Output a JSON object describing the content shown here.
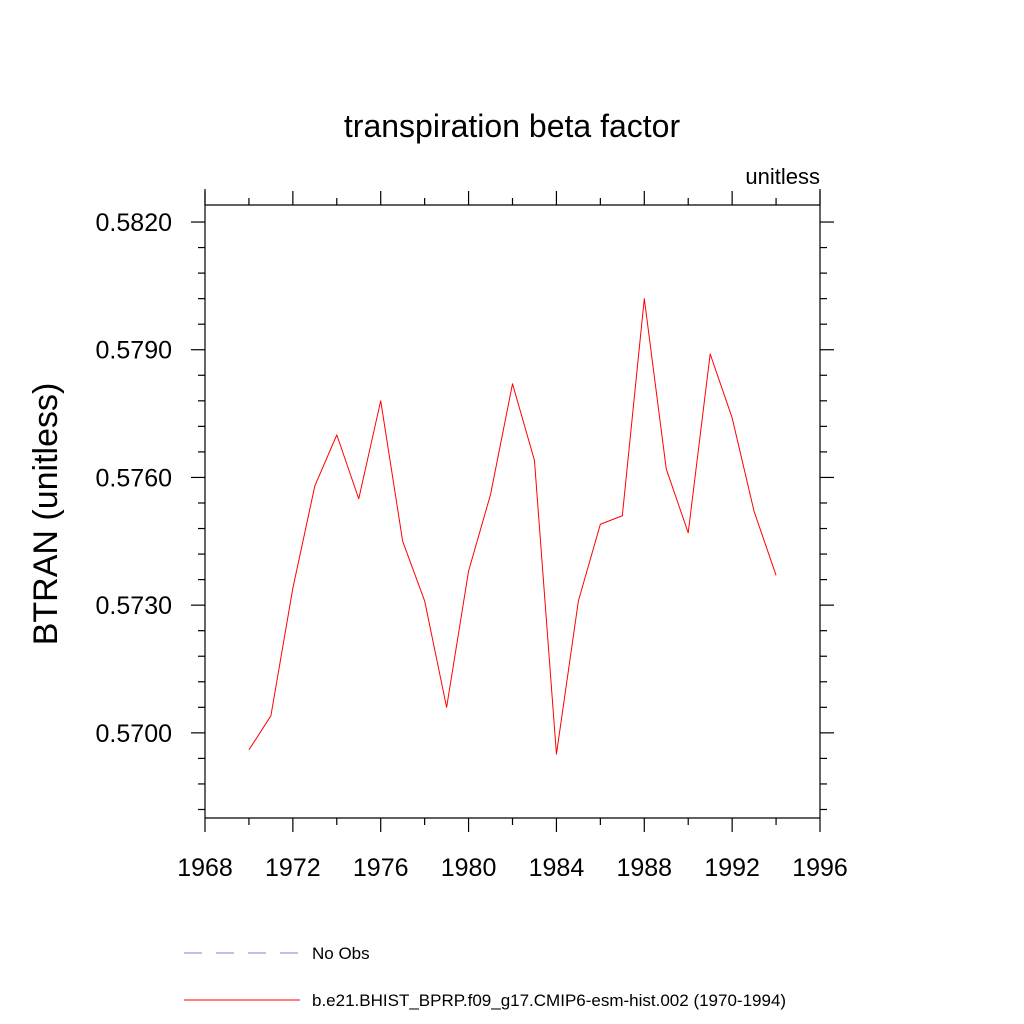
{
  "chart_data": {
    "type": "line",
    "title": "transpiration beta factor",
    "units_label": "unitless",
    "ylabel": "BTRAN  (unitless)",
    "xlabel": "",
    "xlim": [
      1968,
      1996
    ],
    "ylim": [
      0.568,
      0.5824
    ],
    "x_ticks": [
      1968,
      1972,
      1976,
      1980,
      1984,
      1988,
      1992,
      1996
    ],
    "x_tick_labels": [
      "1968",
      "1972",
      "1976",
      "1980",
      "1984",
      "1988",
      "1992",
      "1996"
    ],
    "y_ticks": [
      0.57,
      0.573,
      0.576,
      0.579,
      0.582
    ],
    "y_tick_labels": [
      "0.5700",
      "0.5730",
      "0.5760",
      "0.5790",
      "0.5820"
    ],
    "grid": false,
    "legend_position": "bottom",
    "series": [
      {
        "name": "No Obs",
        "color": "#8080c0",
        "dash": "dashed",
        "x": [],
        "y": []
      },
      {
        "name": "b.e21.BHIST_BPRP.f09_g17.CMIP6-esm-hist.002 (1970-1994)",
        "color": "#ff0000",
        "dash": "solid",
        "x": [
          1970,
          1971,
          1972,
          1973,
          1974,
          1975,
          1976,
          1977,
          1978,
          1979,
          1980,
          1981,
          1982,
          1983,
          1984,
          1985,
          1986,
          1987,
          1988,
          1989,
          1990,
          1991,
          1992,
          1993,
          1994
        ],
        "y": [
          0.5696,
          0.5704,
          0.5734,
          0.5758,
          0.577,
          0.5755,
          0.5778,
          0.5745,
          0.5731,
          0.5706,
          0.5738,
          0.5756,
          0.5782,
          0.5764,
          0.5695,
          0.5731,
          0.5749,
          0.5751,
          0.5802,
          0.5762,
          0.5747,
          0.5789,
          0.5774,
          0.5752,
          0.5737
        ]
      }
    ]
  }
}
